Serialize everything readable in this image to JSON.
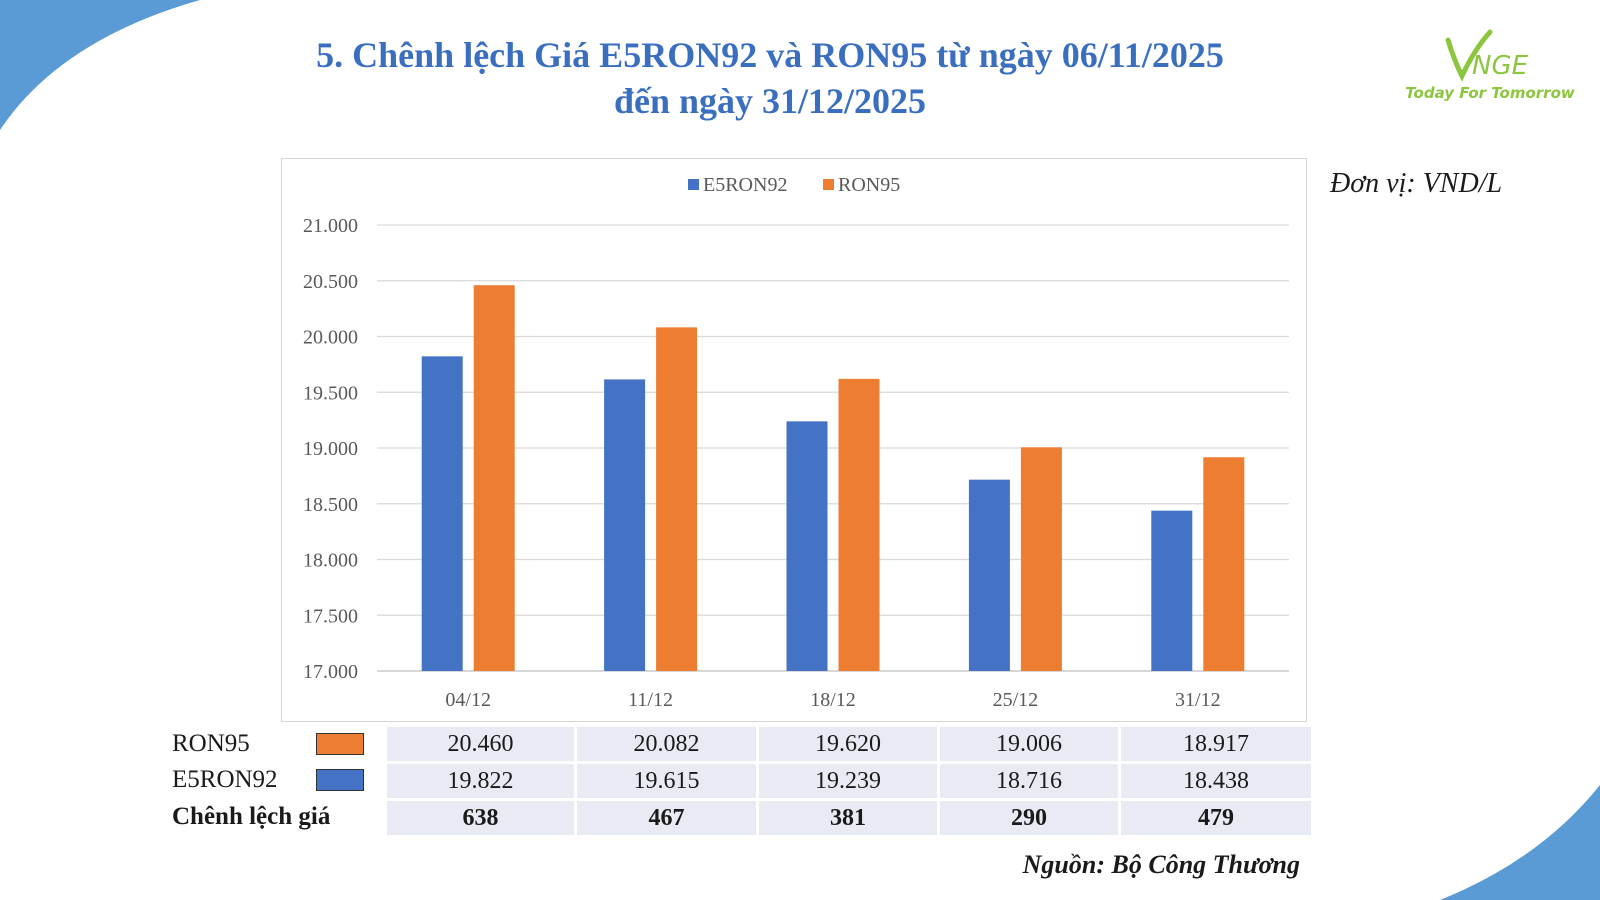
{
  "title": {
    "line1": "5. Chênh lệch Giá E5RON92 và RON95 từ ngày 06/11/2025",
    "line2": "đến ngày 31/12/2025"
  },
  "logo": {
    "brand": "VNGE",
    "tagline": "Today For Tomorrow"
  },
  "unit": "Đơn vị: VND/L",
  "colors": {
    "title": "#3a6fc0",
    "e5ron92": "#4472c4",
    "ron95": "#ed7d31",
    "accent_shape": "#5b9bd5",
    "logo_green": "#8cc63f"
  },
  "chart_data": {
    "type": "bar",
    "categories": [
      "04/12",
      "11/12",
      "18/12",
      "25/12",
      "31/12"
    ],
    "series": [
      {
        "name": "E5RON92",
        "values": [
          19822,
          19615,
          19239,
          18716,
          18438
        ]
      },
      {
        "name": "RON95",
        "values": [
          20460,
          20082,
          19620,
          19006,
          18917
        ]
      }
    ],
    "ylim": [
      17000,
      21000
    ],
    "yticks": [
      17000,
      17500,
      18000,
      18500,
      19000,
      19500,
      20000,
      20500,
      21000
    ],
    "ytick_labels": [
      "17.000",
      "17.500",
      "18.000",
      "18.500",
      "19.000",
      "19.500",
      "20.000",
      "20.500",
      "21.000"
    ],
    "legend_position": "top-center",
    "grid": true
  },
  "table": {
    "rows": [
      {
        "label": "RON95",
        "values": [
          "20.460",
          "20.082",
          "19.620",
          "19.006",
          "18.917"
        ]
      },
      {
        "label": "E5RON92",
        "values": [
          "19.822",
          "19.615",
          "19.239",
          "18.716",
          "18.438"
        ]
      },
      {
        "label": "Chênh lệch giá",
        "values": [
          "638",
          "467",
          "381",
          "290",
          "479"
        ]
      }
    ]
  },
  "source": "Nguồn: Bộ Công Thương"
}
